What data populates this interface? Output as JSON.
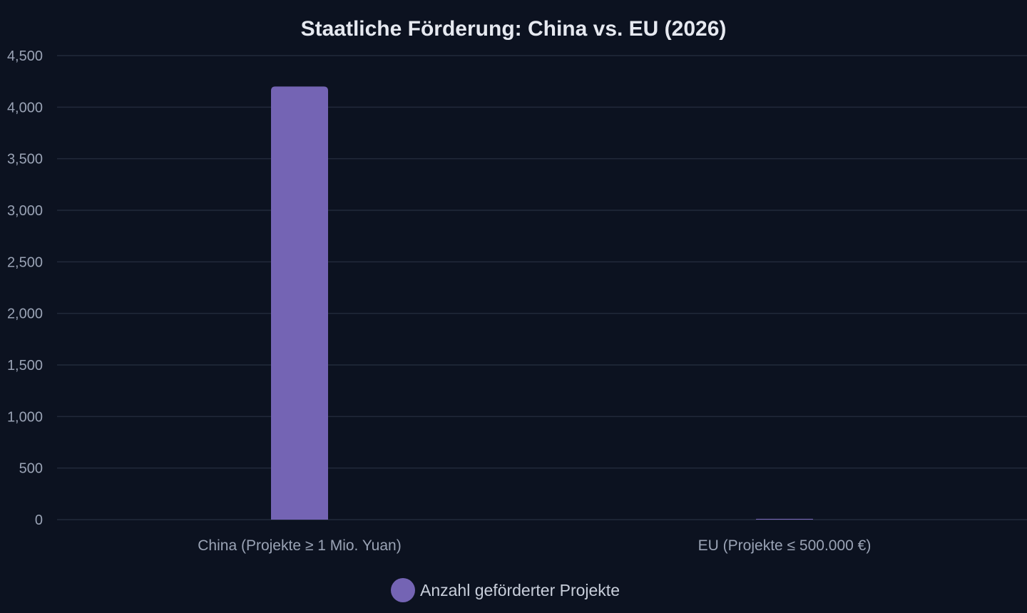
{
  "chart_data": {
    "type": "bar",
    "title": "Staatliche Förderung: China vs. EU (2026)",
    "xlabel": "",
    "ylabel": "",
    "categories": [
      "China (Projekte ≥ 1 Mio. Yuan)",
      "EU (Projekte ≤ 500.000 €)"
    ],
    "series": [
      {
        "name": "Anzahl geförderter Projekte",
        "values": [
          4200,
          8
        ],
        "color": "#7464b4"
      }
    ],
    "ylim": [
      0,
      4500
    ],
    "yticks": [
      0,
      500,
      1000,
      1500,
      2000,
      2500,
      3000,
      3500,
      4000,
      4500
    ],
    "ytick_labels": [
      "0",
      "500",
      "1,000",
      "1,500",
      "2,000",
      "2,500",
      "3,000",
      "3,500",
      "4,000",
      "4,500"
    ],
    "grid": true,
    "legend_position": "bottom"
  },
  "colors": {
    "background": "#0c1220",
    "grid": "#222a3a",
    "text": "#9aa3b5",
    "title": "#e6e9f0"
  }
}
